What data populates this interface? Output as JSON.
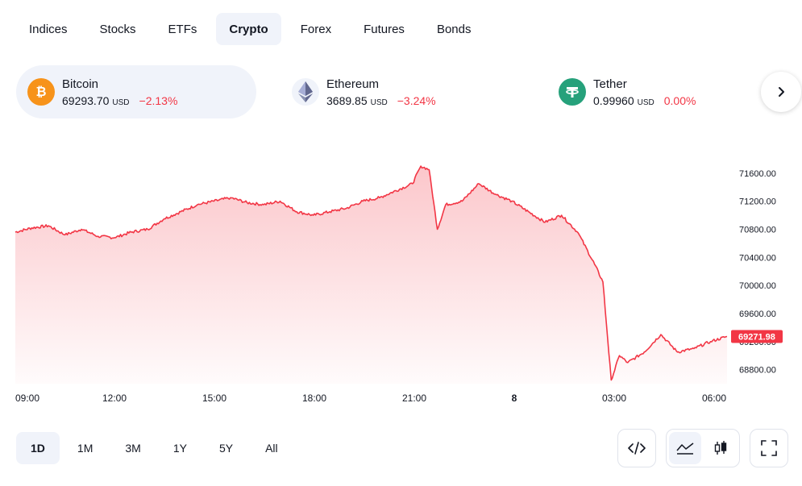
{
  "tabs": [
    {
      "label": "Indices",
      "active": false
    },
    {
      "label": "Stocks",
      "active": false
    },
    {
      "label": "ETFs",
      "active": false
    },
    {
      "label": "Crypto",
      "active": true
    },
    {
      "label": "Forex",
      "active": false
    },
    {
      "label": "Futures",
      "active": false
    },
    {
      "label": "Bonds",
      "active": false
    }
  ],
  "tickers": [
    {
      "name": "Bitcoin",
      "price": "69293.70",
      "currency": "USD",
      "change": "−2.13%",
      "icon": "bitcoin-icon",
      "color": "#f7931a"
    },
    {
      "name": "Ethereum",
      "price": "3689.85",
      "currency": "USD",
      "change": "−3.24%",
      "icon": "ethereum-icon",
      "color": "#627eea"
    },
    {
      "name": "Tether",
      "price": "0.99960",
      "currency": "USD",
      "change": "0.00%",
      "icon": "tether-icon",
      "color": "#26a17b"
    }
  ],
  "chart_data": {
    "type": "area",
    "series": [
      {
        "name": "Bitcoin",
        "color": "#f23645"
      }
    ],
    "x": [
      "09:00",
      "09:30",
      "10:00",
      "10:30",
      "11:00",
      "11:30",
      "12:00",
      "12:30",
      "13:00",
      "13:30",
      "14:00",
      "14:30",
      "15:00",
      "15:30",
      "16:00",
      "16:30",
      "17:00",
      "17:30",
      "18:00",
      "18:30",
      "19:00",
      "19:30",
      "20:00",
      "20:30",
      "21:00",
      "21:15",
      "21:30",
      "21:45",
      "22:00",
      "22:30",
      "23:00",
      "23:30",
      "00:00",
      "00:30",
      "01:00",
      "01:30",
      "02:00",
      "02:30",
      "02:45",
      "03:00",
      "03:15",
      "03:30",
      "04:00",
      "04:30",
      "05:00",
      "05:30",
      "06:00",
      "06:30"
    ],
    "values": [
      70760,
      70820,
      70850,
      70720,
      70800,
      70700,
      70680,
      70760,
      70800,
      70950,
      71050,
      71150,
      71200,
      71250,
      71180,
      71150,
      71200,
      71050,
      71000,
      71050,
      71100,
      71200,
      71250,
      71350,
      71450,
      71700,
      71650,
      70800,
      71150,
      71200,
      71450,
      71300,
      71200,
      71050,
      70900,
      71000,
      70750,
      70300,
      70050,
      68650,
      69000,
      68900,
      69050,
      69300,
      69050,
      69100,
      69200,
      69272
    ],
    "y_ticks": [
      "71600.00",
      "71200.00",
      "70800.00",
      "70400.00",
      "70000.00",
      "69600.00",
      "69200.00",
      "68800.00"
    ],
    "y_tick_values": [
      71600,
      71200,
      70800,
      70400,
      70000,
      69600,
      69200,
      68800
    ],
    "x_ticks": [
      {
        "label": "09:00",
        "bold": false
      },
      {
        "label": "12:00",
        "bold": false
      },
      {
        "label": "15:00",
        "bold": false
      },
      {
        "label": "18:00",
        "bold": false
      },
      {
        "label": "21:00",
        "bold": false
      },
      {
        "label": "8",
        "bold": true
      },
      {
        "label": "03:00",
        "bold": false
      },
      {
        "label": "06:00",
        "bold": false
      }
    ],
    "ylim": [
      68600,
      72000
    ],
    "last_value_label": "69271.98",
    "grid": false
  },
  "ranges": [
    {
      "label": "1D",
      "active": true
    },
    {
      "label": "1M",
      "active": false
    },
    {
      "label": "3M",
      "active": false
    },
    {
      "label": "1Y",
      "active": false
    },
    {
      "label": "5Y",
      "active": false
    },
    {
      "label": "All",
      "active": false
    }
  ],
  "tools": {
    "embed": "code-icon",
    "area_style": "area-chart-icon",
    "candle_style": "candlestick-icon",
    "fullscreen": "fullscreen-icon"
  }
}
